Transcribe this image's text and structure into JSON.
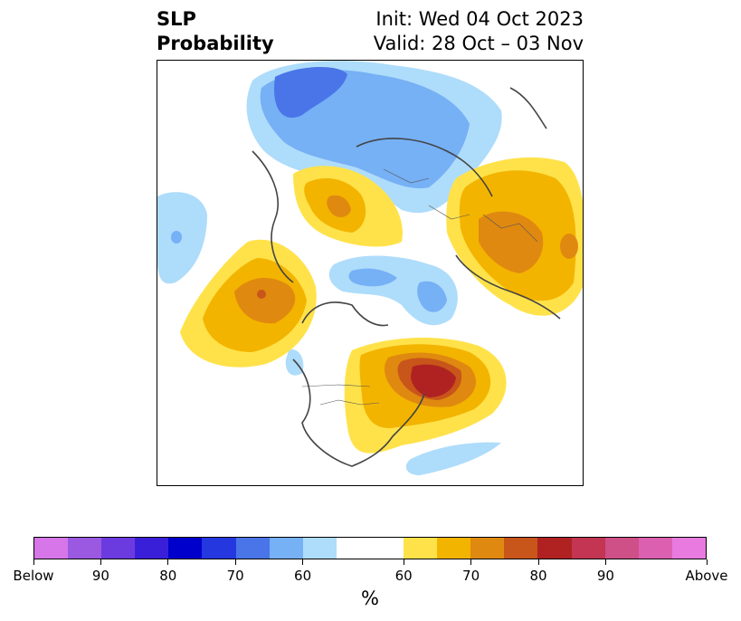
{
  "title": {
    "left_line1": "SLP",
    "left_line2": "Probability",
    "right_line1": "Init: Wed 04 Oct 2023",
    "right_line2": "Valid: 28 Oct – 03 Nov"
  },
  "colorbar": {
    "unit": "%",
    "colors": [
      "#d676e8",
      "#9a59e0",
      "#6c3be0",
      "#3a1fd8",
      "#0000cd",
      "#2538e0",
      "#4a75e8",
      "#76b0f5",
      "#aedcfb",
      "#ffffff",
      "#ffe24a",
      "#f3b400",
      "#e08910",
      "#c85519",
      "#b02222",
      "#c33552",
      "#cf4f87",
      "#dc60b0",
      "#e87ae0"
    ],
    "widths": [
      1,
      1,
      1,
      1,
      1,
      1,
      1,
      1,
      1,
      2,
      1,
      1,
      1,
      1,
      1,
      1,
      1,
      1,
      1
    ],
    "labels": [
      "Below",
      "90",
      "80",
      "70",
      "60",
      "60",
      "70",
      "80",
      "90",
      "Above"
    ]
  },
  "map": {
    "description_colors": {
      "light_blue": "#aedcfb",
      "mid_blue": "#76b0f5",
      "blue": "#4a75e8",
      "yellow": "#ffe24a",
      "gold": "#f3b400",
      "orange": "#e08910",
      "dark_orange": "#c85519",
      "red": "#b02222"
    }
  }
}
